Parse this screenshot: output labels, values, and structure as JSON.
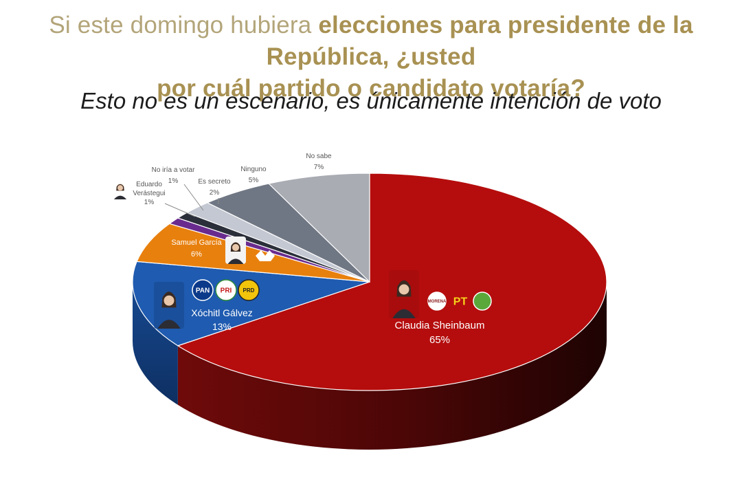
{
  "header": {
    "title_line1_pre": "Si este domingo hubiera ",
    "title_line1_bold": "elecciones para presidente de la República, ¿usted",
    "title_line2_bold": "por cuál partido o candidato votaría?",
    "subtitle": "Esto no es un escenario, es únicamente intención de voto"
  },
  "colors": {
    "title_gold": "#a89152",
    "morena_red": "#b50d0d",
    "xochitl_blue": "#1f5bb0",
    "samuel_orange": "#e8800e",
    "verastegui_purple": "#6a2b8e"
  },
  "chart_data": {
    "type": "pie",
    "title": "",
    "slices": [
      {
        "label": "Claudia Sheinbaum",
        "value": 65,
        "display": "65%",
        "color": "#b50d0d",
        "parties": [
          "MORENA",
          "PT",
          "PVEM"
        ]
      },
      {
        "label": "Xóchitl Gálvez",
        "value": 13,
        "display": "13%",
        "color": "#1f5bb0",
        "parties": [
          "PAN",
          "PRI",
          "PRD"
        ]
      },
      {
        "label": "Samuel García",
        "value": 6,
        "display": "6%",
        "color": "#e8800e",
        "parties": [
          "MC"
        ]
      },
      {
        "label": "Eduardo Verástegui",
        "value": 1,
        "display": "1%",
        "color": "#6a2b8e"
      },
      {
        "label": "No iría a votar",
        "value": 1,
        "display": "1%",
        "color": "#2b2f3a"
      },
      {
        "label": "Es secreto",
        "value": 2,
        "display": "2%",
        "color": "#c4c8d2"
      },
      {
        "label": "Ninguno",
        "value": 5,
        "display": "5%",
        "color": "#707784"
      },
      {
        "label": "No sabe",
        "value": 7,
        "display": "7%",
        "color": "#a9acb3"
      }
    ],
    "icons": {
      "claudia": "claudia-photo-icon",
      "xochitl": "xochitl-photo-icon",
      "samuel": "samuel-photo-icon",
      "verastegui": "verastegui-photo-icon"
    }
  }
}
